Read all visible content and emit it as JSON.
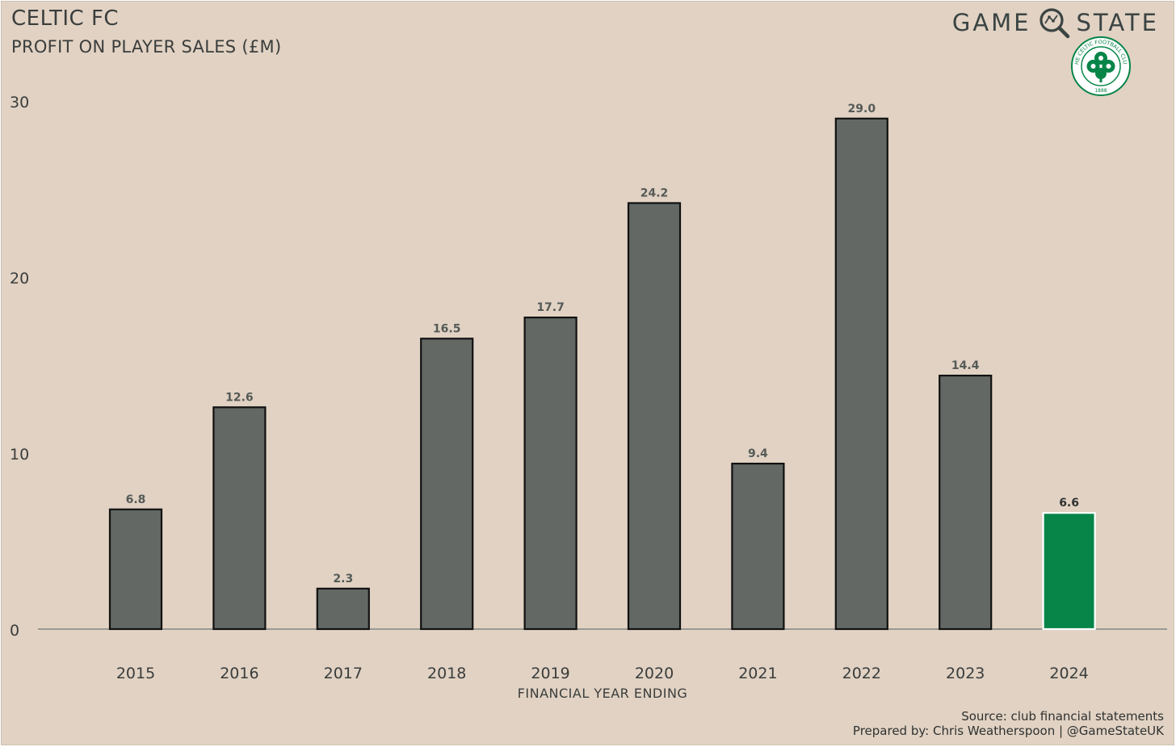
{
  "header": {
    "title": "CELTIC FC",
    "subtitle": "PROFIT ON PLAYER SALES (£M)",
    "brand_left": "GAME",
    "brand_right": "STATE",
    "crest_text": "THE CELTIC FOOTBALL CLUB",
    "crest_year": "1888"
  },
  "footer": {
    "source": "Source: club financial statements",
    "prepared": "Prepared by: Chris Weatherspoon | @GameStateUK"
  },
  "colors": {
    "background": "#e1d2c3",
    "bar": "#636864",
    "highlight": "#078548",
    "text": "#3a3d3c",
    "axis": "#9a9a92"
  },
  "chart_data": {
    "type": "bar",
    "title": "PROFIT ON PLAYER SALES (£M)",
    "xlabel": "FINANCIAL YEAR ENDING",
    "ylabel": "",
    "categories": [
      "2015",
      "2016",
      "2017",
      "2018",
      "2019",
      "2020",
      "2021",
      "2022",
      "2023",
      "2024"
    ],
    "values": [
      6.8,
      12.6,
      2.3,
      16.5,
      17.7,
      24.2,
      9.4,
      29.0,
      14.4,
      6.6
    ],
    "value_labels": [
      "6.8",
      "12.6",
      "2.3",
      "16.5",
      "17.7",
      "24.2",
      "9.4",
      "29.0",
      "14.4",
      "6.6"
    ],
    "highlight_category": "2024",
    "ylim": [
      0,
      30
    ],
    "yticks": [
      "0",
      "10",
      "20",
      "30"
    ],
    "grid": false,
    "legend": "none"
  }
}
